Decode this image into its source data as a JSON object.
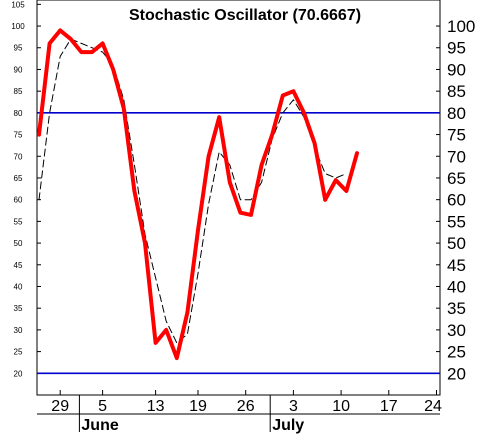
{
  "chart_data": {
    "type": "line",
    "title": "Stochastic Oscillator (70.6667)",
    "ylim": [
      15,
      106
    ],
    "yticks": [
      20,
      25,
      30,
      35,
      40,
      45,
      50,
      55,
      60,
      65,
      70,
      75,
      80,
      85,
      90,
      95,
      100,
      105
    ],
    "right_yticks": [
      20,
      25,
      30,
      35,
      40,
      45,
      50,
      55,
      60,
      65,
      70,
      75,
      80,
      85,
      90,
      95,
      100
    ],
    "x_tick_labels": [
      "29",
      "5",
      "13",
      "19",
      "26",
      "3",
      "10",
      "17",
      "24"
    ],
    "month_labels": [
      "June",
      "July"
    ],
    "reference_lines": [
      80,
      20
    ],
    "x_range": [
      0,
      34
    ],
    "x_tick_positions": [
      2,
      6,
      11,
      15,
      19.5,
      24,
      28.5,
      33,
      37.5
    ],
    "month_positions": [
      4,
      22
    ],
    "series": [
      {
        "name": "",
        "style": "solid",
        "color": "#ff0000",
        "x": [
          0,
          1,
          2,
          3,
          4,
          5,
          6,
          7,
          8,
          9,
          10,
          11,
          12,
          13,
          14,
          15,
          16,
          17,
          18,
          19,
          20,
          21,
          22,
          23,
          24,
          25,
          26,
          27
        ],
        "values": [
          75,
          96,
          99,
          97,
          94,
          94,
          96,
          90,
          81,
          62,
          50,
          27,
          30,
          23.5,
          34,
          53,
          70,
          79,
          64,
          57,
          56.5,
          68,
          75,
          84,
          85,
          80,
          73,
          60
        ]
      },
      {
        "name": "",
        "style": "dashed",
        "color": "#000000",
        "x": [
          0,
          1,
          2,
          3,
          4,
          5,
          6,
          7,
          8,
          9,
          10,
          11,
          12,
          13,
          14,
          15,
          16,
          17,
          18,
          19,
          20,
          21,
          22,
          23,
          24,
          25,
          26,
          27,
          28,
          29
        ],
        "values": [
          60,
          80,
          93,
          97,
          96,
          95,
          94,
          91,
          83,
          68,
          52,
          42,
          32,
          27,
          29,
          43,
          59,
          71,
          68,
          60,
          60,
          64,
          74,
          80,
          83,
          79,
          72,
          66,
          65,
          66
        ]
      },
      {
        "name": "",
        "style": "solid-tail",
        "color": "#ff0000",
        "x": [
          27,
          28,
          29,
          30
        ],
        "values": [
          60,
          64.5,
          62,
          70.7
        ]
      }
    ]
  }
}
